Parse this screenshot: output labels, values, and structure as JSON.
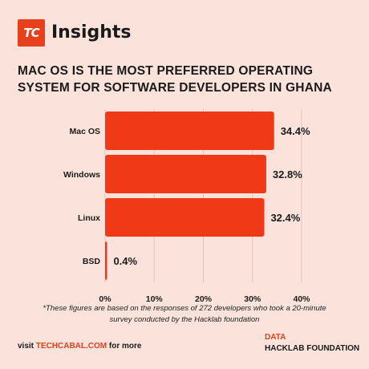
{
  "header": {
    "logo_text": "TC",
    "brand": "Insights"
  },
  "colors": {
    "background": "#fbe3dc",
    "accent": "#e8401c",
    "bar": "#f03a17",
    "grid": "#e0c4bc"
  },
  "chart_data": {
    "type": "bar",
    "orientation": "horizontal",
    "title": "MAC OS IS THE MOST PREFERRED OPERATING SYSTEM FOR SOFTWARE DEVELOPERS IN GHANA",
    "categories": [
      "Mac OS",
      "Windows",
      "Linux",
      "BSD"
    ],
    "values": [
      34.4,
      32.8,
      32.4,
      0.4
    ],
    "value_labels": [
      "34.4%",
      "32.8%",
      "32.4%",
      "0.4%"
    ],
    "xlim": [
      0,
      40
    ],
    "xticks": [
      "0%",
      "10%",
      "20%",
      "30%",
      "40%"
    ],
    "grid": "vertical"
  },
  "footer": {
    "note": "*These figures are based on the responses of 272 developers who took a 20-minute survey conducted by the Hacklab foundation",
    "visit_prefix": "visit ",
    "visit_link": "TECHCABAL.COM",
    "visit_suffix": " for more",
    "data_label": "DATA",
    "data_source": "HACKLAB FOUNDATION"
  }
}
